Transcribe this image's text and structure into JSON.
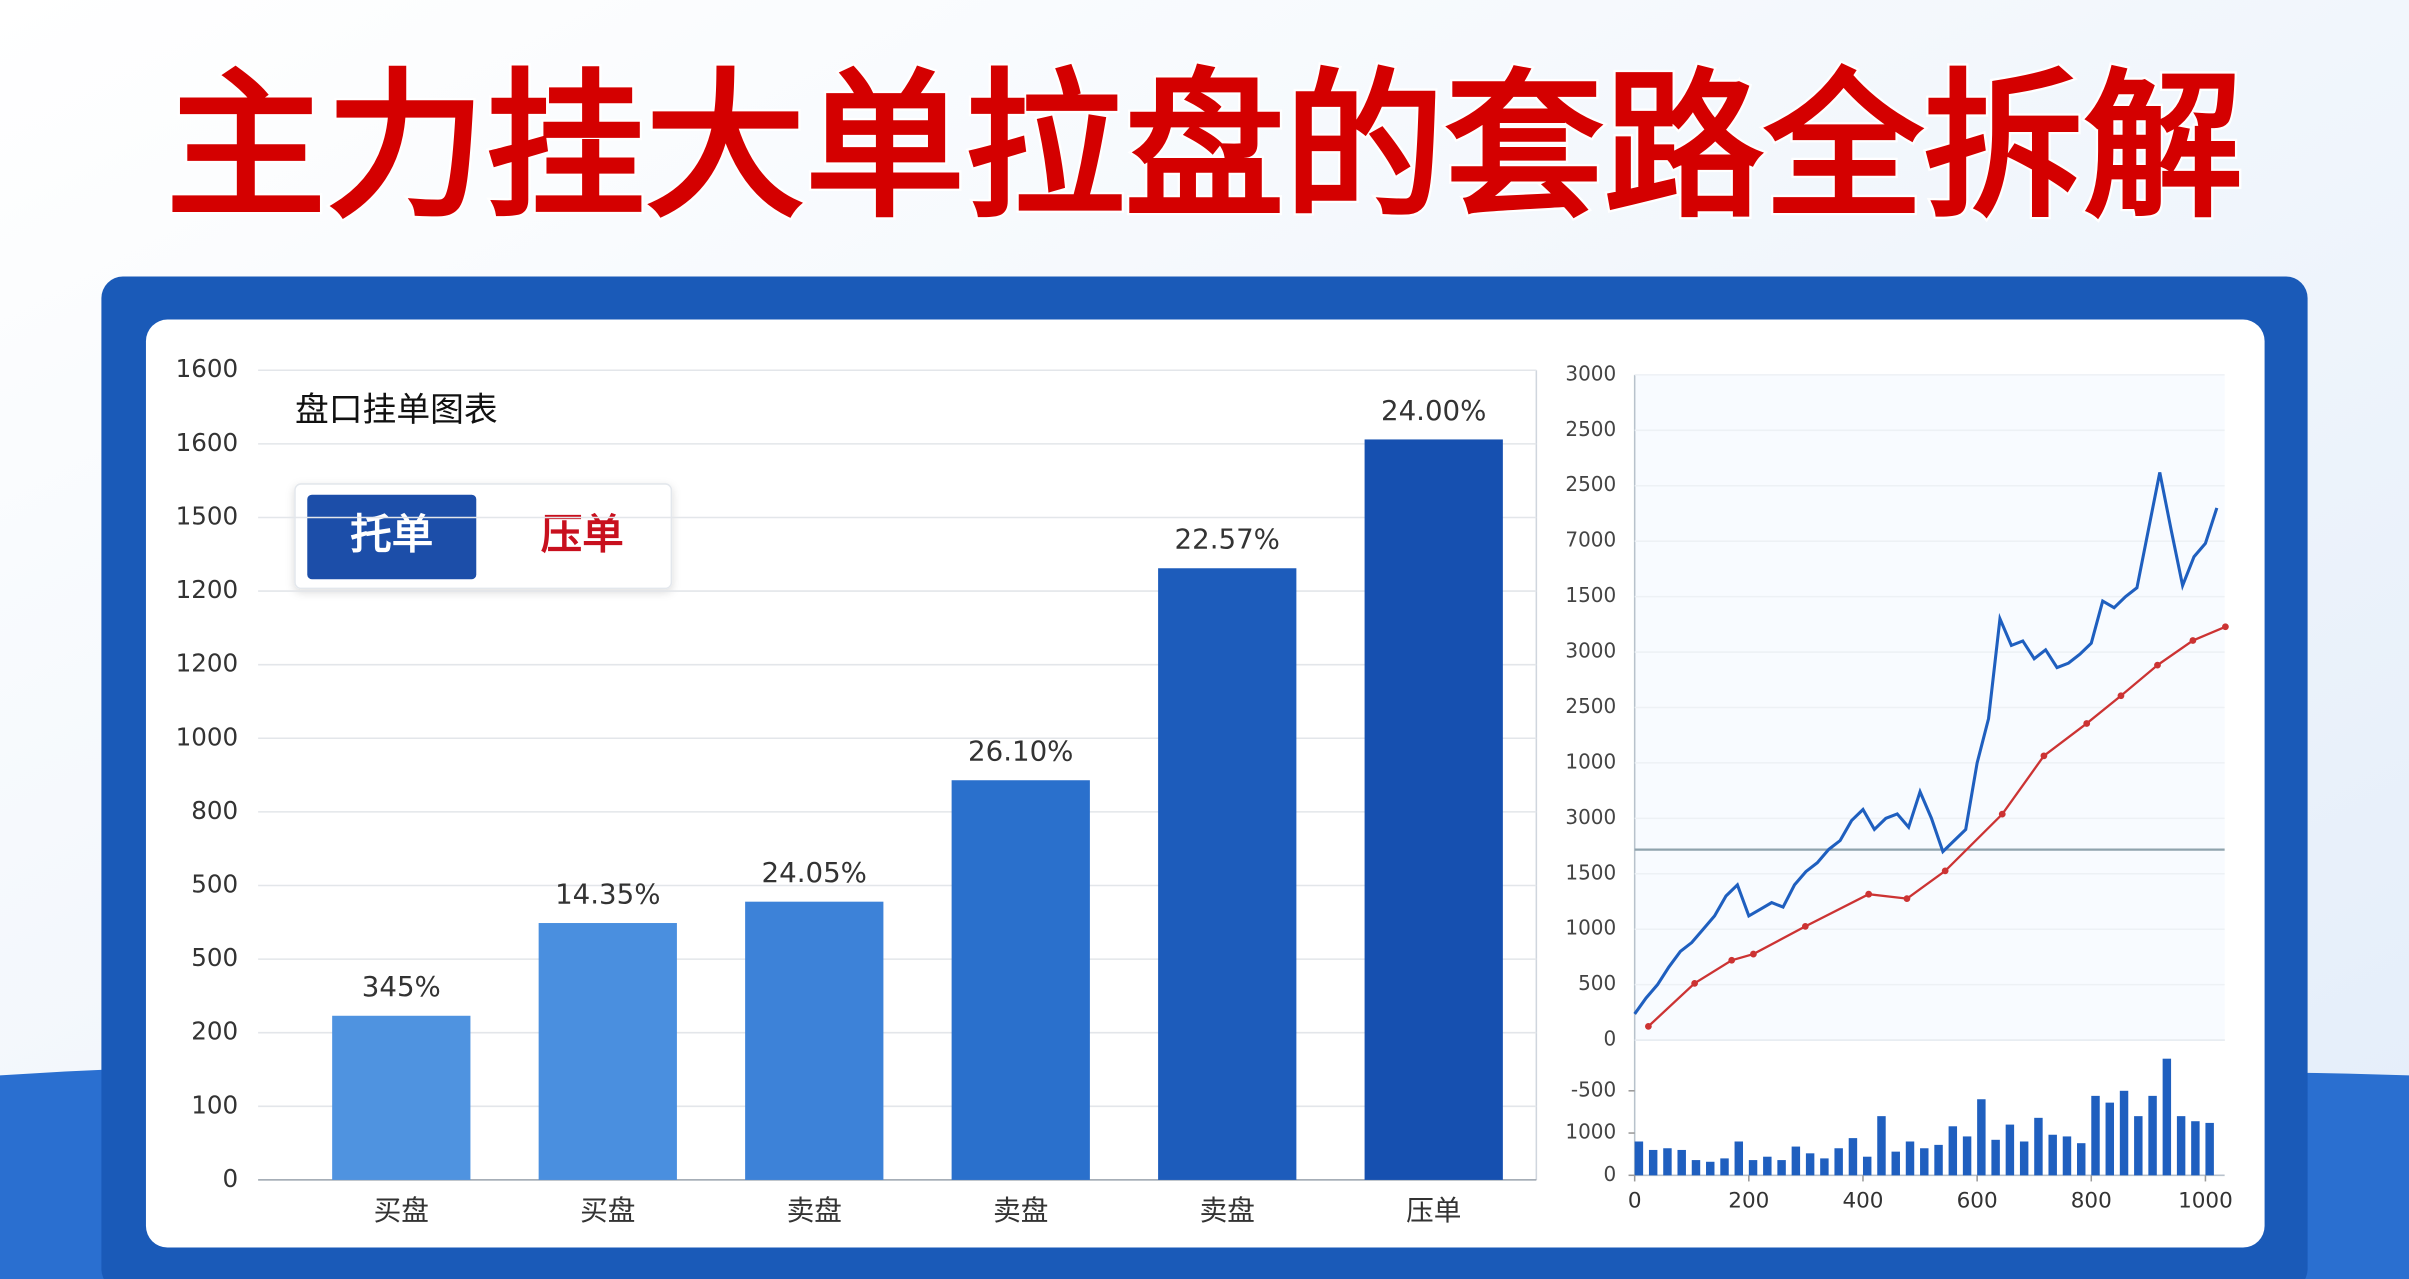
{
  "title": "主力挂大单拉盘的套路全拆解",
  "chart_data": [
    {
      "type": "bar",
      "title": "盘口挂单图表",
      "legend": [
        {
          "text": "托单",
          "color": "#1c4ea9"
        },
        {
          "text": "压单",
          "color": "#c8101e"
        }
      ],
      "categories": [
        "买盘",
        "买盘",
        "卖盘",
        "卖盘",
        "卖盘",
        "压单"
      ],
      "values": [
        223,
        349,
        378,
        543,
        831,
        1006
      ],
      "annotations": [
        "345%",
        "14.35%",
        "24.05%",
        "26.10%",
        "22.57%",
        "24.00%"
      ],
      "colors": [
        "#4f93e0",
        "#4a8fdf",
        "#3d82d8",
        "#2a70cc",
        "#1d5cbb",
        "#1650b0"
      ],
      "ylim": [
        0,
        1100
      ],
      "yticks": [
        0,
        100,
        200,
        {
          "value": 300,
          "label": "500"
        },
        {
          "value": 400,
          "label": "500"
        },
        {
          "value": 500,
          "label": "800"
        },
        {
          "value": 600,
          "label": "1000"
        },
        {
          "value": 700,
          "label": "1200"
        },
        {
          "value": 800,
          "label": "1200"
        },
        {
          "value": 900,
          "label": "1500"
        },
        {
          "value": 1000,
          "label": "1600"
        },
        {
          "value": 1100,
          "label": "1600"
        }
      ],
      "grid": true
    },
    {
      "type": "line",
      "xlim": [
        0,
        1000
      ],
      "ylim": [
        0,
        3000
      ],
      "yticks": [
        0,
        {
          "value": 250,
          "label": "500"
        },
        {
          "value": 500,
          "label": "1000"
        },
        {
          "value": 750,
          "label": "1500"
        },
        {
          "value": 1000,
          "label": "3000"
        },
        {
          "value": 1250,
          "label": "1000"
        },
        {
          "value": 1500,
          "label": "2500"
        },
        {
          "value": 1750,
          "label": "3000"
        },
        {
          "value": 2000,
          "label": "1500"
        },
        {
          "value": 2250,
          "label": "7000"
        },
        2500,
        {
          "value": 2750,
          "label": "2500"
        },
        3000
      ],
      "hline": 859,
      "hline_color": "#8fa3ad",
      "series": [
        {
          "color": "#1f5fbf",
          "x": [
            0,
            20,
            40,
            60,
            80,
            100,
            120,
            140,
            160,
            180,
            200,
            220,
            240,
            260,
            280,
            300,
            320,
            340,
            360,
            380,
            400,
            420,
            440,
            460,
            480,
            500,
            520,
            540,
            560,
            580,
            600,
            620,
            640,
            660,
            680,
            700,
            720,
            740,
            760,
            780,
            800,
            820,
            840,
            860,
            880,
            900,
            920,
            940,
            960,
            980,
            1000,
            1020
          ],
          "values": [
            118,
            190,
            250,
            330,
            400,
            440,
            500,
            560,
            650,
            700,
            560,
            590,
            620,
            600,
            700,
            760,
            800,
            860,
            900,
            990,
            1040,
            950,
            1000,
            1020,
            960,
            1120,
            1000,
            850,
            900,
            950,
            1250,
            1450,
            1900,
            1780,
            1800,
            1720,
            1760,
            1680,
            1700,
            1740,
            1790,
            1980,
            1950,
            2000,
            2040,
            2300,
            2560,
            2300,
            2050,
            2180,
            2240,
            2400
          ]
        },
        {
          "color": "#cc3333",
          "x": [
            24,
            105,
            170,
            208,
            299,
            410,
            477,
            544,
            644,
            717,
            792,
            852,
            916,
            978,
            1035
          ],
          "values": [
            62,
            256,
            360,
            388,
            513,
            658,
            638,
            763,
            1019,
            1282,
            1428,
            1553,
            1691,
            1802,
            1864
          ]
        }
      ]
    },
    {
      "type": "bar",
      "color": "#1f5fbf",
      "xlim": [
        0,
        1000
      ],
      "xticks": [
        0,
        200,
        400,
        600,
        800,
        1000
      ],
      "ylim": [
        0,
        1400
      ],
      "yticks": [
        0,
        {
          "value": 500,
          "label": "1000"
        },
        {
          "value": 1000,
          "label": "-500"
        }
      ],
      "x": [
        0,
        25,
        50,
        75,
        100,
        125,
        150,
        175,
        200,
        225,
        250,
        275,
        300,
        325,
        350,
        375,
        400,
        425,
        450,
        475,
        500,
        525,
        550,
        575,
        600,
        625,
        650,
        675,
        700,
        725,
        750,
        775,
        800,
        825,
        850,
        875,
        900,
        925,
        950,
        975,
        1000
      ],
      "values": [
        400,
        300,
        320,
        300,
        180,
        160,
        200,
        400,
        180,
        220,
        180,
        340,
        260,
        200,
        320,
        440,
        220,
        700,
        280,
        400,
        320,
        360,
        580,
        460,
        900,
        420,
        600,
        400,
        680,
        480,
        460,
        380,
        940,
        860,
        1000,
        700,
        940,
        1380,
        700,
        640,
        620
      ]
    }
  ]
}
